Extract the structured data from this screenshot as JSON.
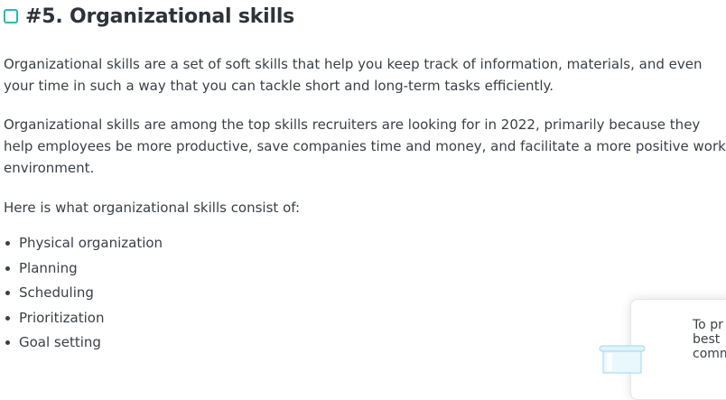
{
  "section": {
    "heading_icon": "checkbox-square-icon",
    "accent_color": "#1fbfb0",
    "title": "#5. Organizational skills"
  },
  "paragraphs": [
    "Organizational skills are a set of soft skills that help you keep track of information, materials, and even your time in such a way that you can tackle short and long-term tasks efficiently.",
    "Organizational skills are among the top skills recruiters are looking for in 2022, primarily because they help employees be more productive, save companies time and money, and facilitate a more positive work environment.",
    "Here is what organizational skills consist of:"
  ],
  "skills": [
    "Physical organization",
    "Planning",
    "Scheduling",
    "Prioritization",
    "Goal setting"
  ],
  "popup": {
    "lines": [
      "To pr",
      "best",
      "comm"
    ],
    "illustration_icon": "cookie-jar-icon"
  }
}
